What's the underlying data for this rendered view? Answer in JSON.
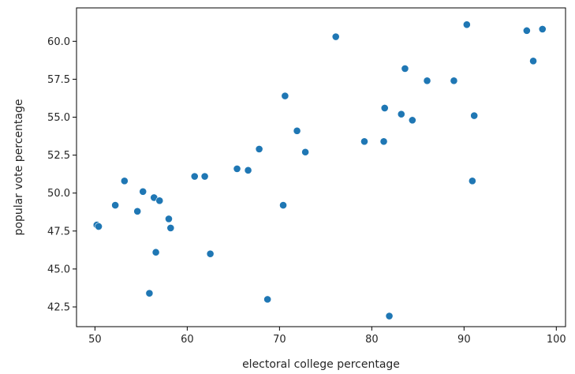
{
  "chart_data": {
    "type": "scatter",
    "title": "",
    "xlabel": "electoral college percentage",
    "ylabel": "popular vote percentage",
    "xlim": [
      48,
      101
    ],
    "ylim": [
      41.2,
      62.2
    ],
    "xticks": [
      50,
      60,
      70,
      80,
      90,
      100
    ],
    "yticks": [
      42.5,
      45.0,
      47.5,
      50.0,
      52.5,
      55.0,
      57.5,
      60.0
    ],
    "xtick_labels": [
      "50",
      "60",
      "70",
      "80",
      "90",
      "100"
    ],
    "ytick_labels": [
      "42.5",
      "45.0",
      "47.5",
      "50.0",
      "52.5",
      "55.0",
      "57.5",
      "60.0"
    ],
    "grid": false,
    "marker_color": "#1f77b4",
    "points": [
      {
        "x": 50.2,
        "y": 47.9
      },
      {
        "x": 50.4,
        "y": 47.8
      },
      {
        "x": 52.2,
        "y": 49.2
      },
      {
        "x": 53.2,
        "y": 50.8
      },
      {
        "x": 54.6,
        "y": 48.8
      },
      {
        "x": 55.2,
        "y": 50.1
      },
      {
        "x": 55.9,
        "y": 43.4
      },
      {
        "x": 56.4,
        "y": 49.7
      },
      {
        "x": 56.6,
        "y": 46.1
      },
      {
        "x": 57.0,
        "y": 49.5
      },
      {
        "x": 58.0,
        "y": 48.3
      },
      {
        "x": 58.2,
        "y": 47.7
      },
      {
        "x": 60.8,
        "y": 51.1
      },
      {
        "x": 61.9,
        "y": 51.1
      },
      {
        "x": 62.5,
        "y": 46.0
      },
      {
        "x": 65.4,
        "y": 51.6
      },
      {
        "x": 66.6,
        "y": 51.5
      },
      {
        "x": 67.8,
        "y": 52.9
      },
      {
        "x": 68.7,
        "y": 43.0
      },
      {
        "x": 70.4,
        "y": 49.2
      },
      {
        "x": 70.6,
        "y": 56.4
      },
      {
        "x": 71.9,
        "y": 54.1
      },
      {
        "x": 72.8,
        "y": 52.7
      },
      {
        "x": 76.1,
        "y": 60.3
      },
      {
        "x": 79.2,
        "y": 53.4
      },
      {
        "x": 81.3,
        "y": 53.4
      },
      {
        "x": 81.4,
        "y": 55.6
      },
      {
        "x": 81.9,
        "y": 41.9
      },
      {
        "x": 83.2,
        "y": 55.2
      },
      {
        "x": 83.6,
        "y": 58.2
      },
      {
        "x": 84.4,
        "y": 54.8
      },
      {
        "x": 86.0,
        "y": 57.4
      },
      {
        "x": 88.9,
        "y": 57.4
      },
      {
        "x": 90.3,
        "y": 61.1
      },
      {
        "x": 90.9,
        "y": 50.8
      },
      {
        "x": 91.1,
        "y": 55.1
      },
      {
        "x": 96.8,
        "y": 60.7
      },
      {
        "x": 97.5,
        "y": 58.7
      },
      {
        "x": 98.5,
        "y": 60.8
      }
    ]
  }
}
